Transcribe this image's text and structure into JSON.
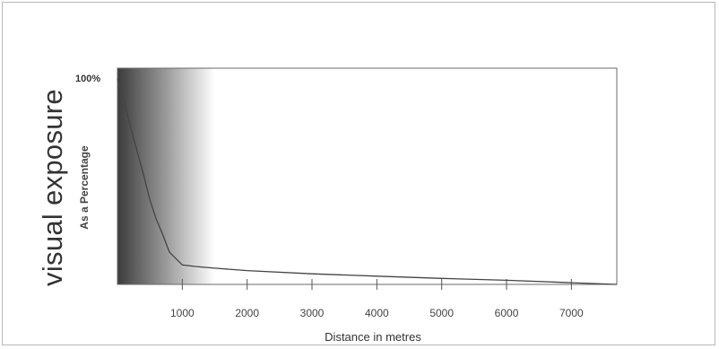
{
  "chart_data": {
    "type": "line",
    "title": "",
    "ylabel": "visual exposure",
    "ylabel_sub": "As a Percentage",
    "xlabel": "Distance in metres",
    "ymax_label": "100%",
    "xlim": [
      0,
      7700
    ],
    "ylim": [
      0,
      100
    ],
    "x_ticks": [
      1000,
      2000,
      3000,
      4000,
      5000,
      6000,
      7000
    ],
    "grid": false,
    "background_gradient": {
      "from": "#3c3c3c",
      "to": "#ffffff",
      "x_start": 0,
      "x_end": 1500
    },
    "series": [
      {
        "color": "#444444",
        "x": [
          0,
          100,
          200,
          300,
          400,
          500,
          600,
          700,
          800,
          1000,
          1200,
          1500,
          2000,
          3000,
          4000,
          5000,
          6000,
          7000,
          7700
        ],
        "y": [
          95,
          85,
          73,
          62,
          51,
          39,
          30,
          23,
          15,
          9,
          8.3,
          7.5,
          6.4,
          4.9,
          3.8,
          2.8,
          1.9,
          0.8,
          0
        ]
      }
    ]
  }
}
